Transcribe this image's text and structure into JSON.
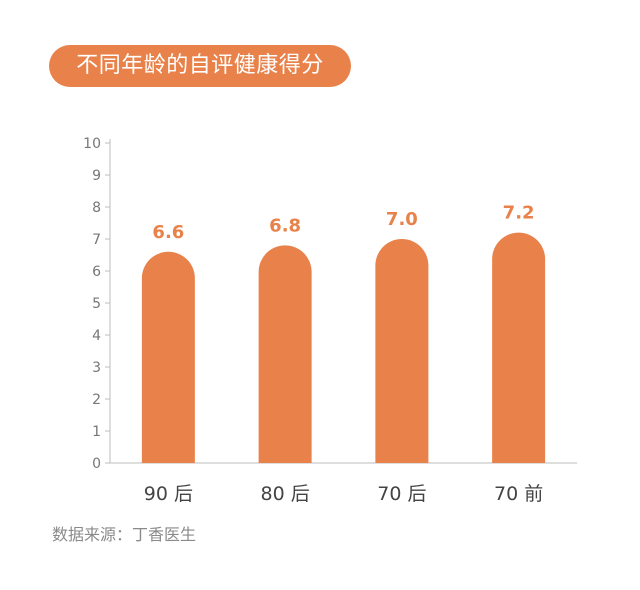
{
  "title": "不同年龄的自评健康得分",
  "source": "数据来源：丁香医生",
  "colors": {
    "bar": "#E8824A",
    "label": "#E8824A",
    "axis": "#bdbdbd",
    "tick": "#777777"
  },
  "chart_data": {
    "type": "bar",
    "title": "不同年龄的自评健康得分",
    "categories": [
      "90 后",
      "80 后",
      "70 后",
      "70 前"
    ],
    "values": [
      6.6,
      6.8,
      7.0,
      7.2
    ],
    "data_labels": [
      "6.6",
      "6.8",
      "7.0",
      "7.2"
    ],
    "xlabel": "",
    "ylabel": "",
    "ylim": [
      0,
      10
    ],
    "yticks": [
      0,
      1,
      2,
      3,
      4,
      5,
      6,
      7,
      8,
      9,
      10
    ],
    "grid": false,
    "legend": "none"
  }
}
